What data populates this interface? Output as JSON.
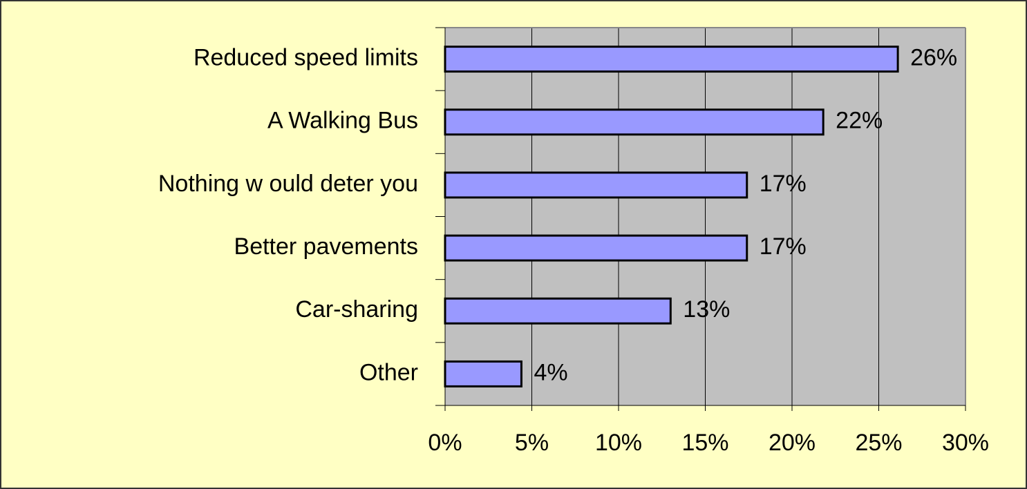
{
  "chart_data": {
    "type": "hbar",
    "categories": [
      "Reduced speed limits",
      "A Walking Bus",
      "Nothing w ould deter you",
      "Better pavements",
      "Car-sharing",
      "Other"
    ],
    "values": [
      26.1,
      21.8,
      17.4,
      17.4,
      13.0,
      4.4
    ],
    "value_labels": [
      "26%",
      "22%",
      "17%",
      "17%",
      "13%",
      "4%"
    ],
    "color": "#9999ff",
    "xlim": [
      0,
      30
    ],
    "xticks": [
      {
        "value": 0,
        "label": "0%"
      },
      {
        "value": 5,
        "label": "5%"
      },
      {
        "value": 10,
        "label": "10%"
      },
      {
        "value": 15,
        "label": "15%"
      },
      {
        "value": 20,
        "label": "20%"
      },
      {
        "value": 25,
        "label": "25%"
      },
      {
        "value": 30,
        "label": "30%"
      }
    ],
    "grid": true
  }
}
